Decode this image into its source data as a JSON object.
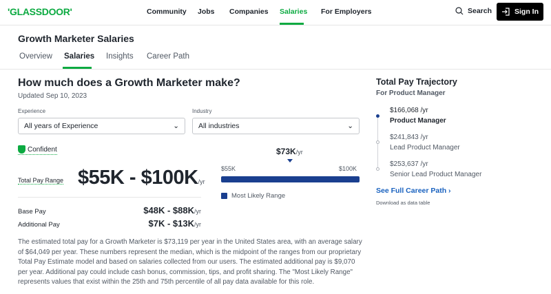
{
  "header": {
    "logo": "'GLASSDOOR'",
    "nav": [
      "Community",
      "Jobs",
      "Companies",
      "Salaries",
      "For Employers"
    ],
    "active_nav": "Salaries",
    "search": "Search",
    "sign_in": "Sign In",
    "accent": "#0caa41"
  },
  "page": {
    "title": "Growth Marketer Salaries",
    "tabs": [
      "Overview",
      "Salaries",
      "Insights",
      "Career Path"
    ],
    "active_tab": "Salaries"
  },
  "main": {
    "heading": "How much does a Growth Marketer make?",
    "updated": "Updated Sep 10, 2023",
    "filters": {
      "experience_label": "Experience",
      "experience_value": "All years of Experience",
      "industry_label": "Industry",
      "industry_value": "All industries"
    },
    "confidence": "Confident",
    "total_pay_label": "Total Pay Range",
    "total_pay": "$55K - $100K",
    "per_yr": "/yr",
    "base_label": "Base Pay",
    "base_value": "$48K - $88K",
    "additional_label": "Additional Pay",
    "additional_value": "$7K - $13K",
    "range": {
      "median": "$73K",
      "min": "$55K",
      "max": "$100K",
      "legend": "Most Likely Range",
      "color": "#1a3f8f"
    },
    "description": "The estimated total pay for a Growth Marketer is $73,119 per year in the United States area, with an average salary of $64,049 per year. These numbers represent the median, which is the midpoint of the ranges from our proprietary Total Pay Estimate model and based on salaries collected from our users. The estimated additional pay is $9,070 per year. Additional pay could include cash bonus, commission, tips, and profit sharing. The \"Most Likely Range\" represents values that exist within the 25th and 75th percentile of all pay data available for this role."
  },
  "sidebar": {
    "title": "Total Pay Trajectory",
    "subtitle": "For Product Manager",
    "steps": [
      {
        "pay": "$166,068 /yr",
        "role": "Product Manager"
      },
      {
        "pay": "$241,843 /yr",
        "role": "Lead Product Manager"
      },
      {
        "pay": "$253,637 /yr",
        "role": "Senior Lead Product Manager"
      }
    ],
    "link": "See Full Career Path",
    "download": "Download as data table"
  }
}
